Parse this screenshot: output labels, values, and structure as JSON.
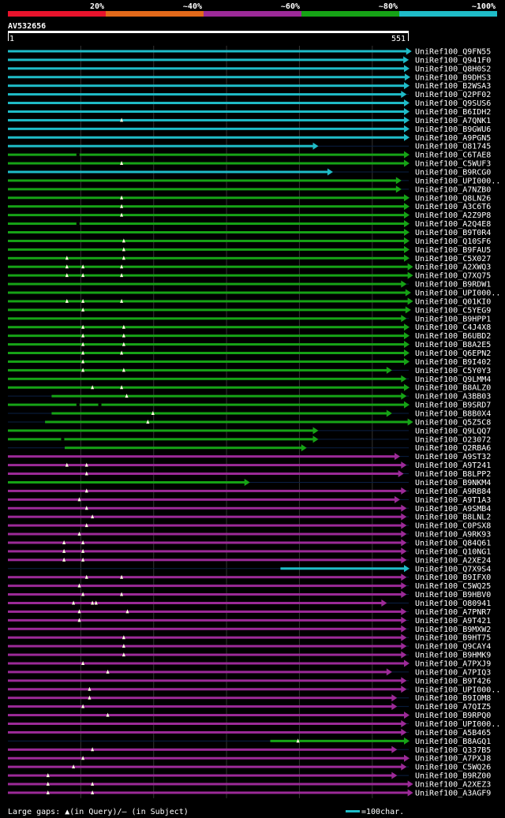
{
  "chart_data": {
    "type": "alignment-overview",
    "query_id": "AV532656",
    "query_length": 551,
    "axis_start_label": "1",
    "axis_end_label": "551",
    "identity_scale": [
      {
        "label": "20%",
        "color": "#e8132c"
      },
      {
        "label": "~40%",
        "color": "#e2691a"
      },
      {
        "label": "~60%",
        "color": "#9c2a98"
      },
      {
        "label": "~80%",
        "color": "#16a316"
      },
      {
        "label": "~100%",
        "color": "#1fbcc8"
      }
    ],
    "legend_gaps": "Large gaps: ▲(in Query)/– (in Subject)",
    "legend_scale": "=100char.",
    "hits": [
      {
        "id": "UniRef100_Q9FN55",
        "start": 1,
        "end": 554,
        "identity": "~100%"
      },
      {
        "id": "UniRef100_Q941F0",
        "start": 1,
        "end": 550,
        "identity": "~100%"
      },
      {
        "id": "UniRef100_Q8H0S2",
        "start": 1,
        "end": 551,
        "identity": "~100%"
      },
      {
        "id": "UniRef100_B9DHS3",
        "start": 1,
        "end": 552,
        "identity": "~100%"
      },
      {
        "id": "UniRef100_B2WSA3",
        "start": 1,
        "end": 551,
        "identity": "~100%"
      },
      {
        "id": "UniRef100_Q2PF02",
        "start": 1,
        "end": 547,
        "identity": "~100%"
      },
      {
        "id": "UniRef100_Q9SUS6",
        "start": 1,
        "end": 551,
        "identity": "~100%"
      },
      {
        "id": "UniRef100_B6IDH2",
        "start": 1,
        "end": 551,
        "identity": "~100%"
      },
      {
        "id": "UniRef100_A7QNK1",
        "start": 1,
        "end": 551,
        "identity": "~100%",
        "qgaps": [
          157
        ]
      },
      {
        "id": "UniRef100_B9GWU6",
        "start": 1,
        "end": 551,
        "identity": "~100%"
      },
      {
        "id": "UniRef100_A9PGN5",
        "start": 1,
        "end": 551,
        "identity": "~100%"
      },
      {
        "id": "UniRef100_O81745",
        "start": 1,
        "end": 426,
        "identity": "~100%"
      },
      {
        "id": "UniRef100_C6TAE8",
        "start": 1,
        "end": 551,
        "identity": "~80%",
        "sgaps": [
          95
        ]
      },
      {
        "id": "UniRef100_C5WUF3",
        "start": 1,
        "end": 551,
        "identity": "~80%",
        "qgaps": [
          157
        ]
      },
      {
        "id": "UniRef100_B9RCG0",
        "start": 1,
        "end": 446,
        "identity": "~100%"
      },
      {
        "id": "UniRef100_UPI000..",
        "start": 1,
        "end": 540,
        "identity": "~80%"
      },
      {
        "id": "UniRef100_A7NZB0",
        "start": 1,
        "end": 540,
        "identity": "~80%"
      },
      {
        "id": "UniRef100_Q8LN26",
        "start": 1,
        "end": 551,
        "identity": "~80%",
        "qgaps": [
          157
        ]
      },
      {
        "id": "UniRef100_A3C6T6",
        "start": 1,
        "end": 551,
        "identity": "~80%",
        "qgaps": [
          157
        ]
      },
      {
        "id": "UniRef100_A2Z9P8",
        "start": 1,
        "end": 551,
        "identity": "~80%",
        "qgaps": [
          157
        ]
      },
      {
        "id": "UniRef100_A2Q4E8",
        "start": 1,
        "end": 551,
        "identity": "~80%",
        "sgaps": [
          95
        ]
      },
      {
        "id": "UniRef100_B9T0R4",
        "start": 1,
        "end": 551,
        "identity": "~80%"
      },
      {
        "id": "UniRef100_Q10SF6",
        "start": 1,
        "end": 551,
        "identity": "~80%",
        "qgaps": [
          160
        ]
      },
      {
        "id": "UniRef100_B9FAU5",
        "start": 1,
        "end": 551,
        "identity": "~80%",
        "qgaps": [
          160
        ]
      },
      {
        "id": "UniRef100_C5X027",
        "start": 1,
        "end": 551,
        "identity": "~80%",
        "qgaps": [
          82,
          160
        ]
      },
      {
        "id": "UniRef100_A2XWQ3",
        "start": 1,
        "end": 556,
        "identity": "~80%",
        "qgaps": [
          82,
          104,
          157
        ]
      },
      {
        "id": "UniRef100_Q7XQ75",
        "start": 1,
        "end": 556,
        "identity": "~80%",
        "qgaps": [
          82,
          104,
          157
        ]
      },
      {
        "id": "UniRef100_B9RDW1",
        "start": 1,
        "end": 547,
        "identity": "~80%"
      },
      {
        "id": "UniRef100_UPI000..",
        "start": 1,
        "end": 553,
        "identity": "~80%"
      },
      {
        "id": "UniRef100_Q01KI0",
        "start": 1,
        "end": 556,
        "identity": "~80%",
        "qgaps": [
          82,
          104,
          157
        ]
      },
      {
        "id": "UniRef100_C5YEG9",
        "start": 1,
        "end": 553,
        "identity": "~80%",
        "qgaps": [
          104
        ]
      },
      {
        "id": "UniRef100_B9HPP1",
        "start": 1,
        "end": 547,
        "identity": "~80%"
      },
      {
        "id": "UniRef100_C4J4X8",
        "start": 1,
        "end": 551,
        "identity": "~80%",
        "qgaps": [
          104,
          160
        ]
      },
      {
        "id": "UniRef100_B6UBD2",
        "start": 1,
        "end": 551,
        "identity": "~80%",
        "qgaps": [
          104,
          160
        ]
      },
      {
        "id": "UniRef100_B8A2E5",
        "start": 1,
        "end": 551,
        "identity": "~80%",
        "qgaps": [
          104,
          160
        ]
      },
      {
        "id": "UniRef100_Q6EPN2",
        "start": 1,
        "end": 551,
        "identity": "~80%",
        "qgaps": [
          104,
          157
        ]
      },
      {
        "id": "UniRef100_B9I402",
        "start": 1,
        "end": 551,
        "identity": "~80%",
        "qgaps": [
          104
        ]
      },
      {
        "id": "UniRef100_C5Y0Y3",
        "start": 1,
        "end": 527,
        "identity": "~80%",
        "qgaps": [
          104,
          160
        ]
      },
      {
        "id": "UniRef100_Q9LMM4",
        "start": 1,
        "end": 547,
        "identity": "~80%"
      },
      {
        "id": "UniRef100_B8ALZ0",
        "start": 1,
        "end": 551,
        "identity": "~80%",
        "qgaps": [
          117,
          157
        ]
      },
      {
        "id": "UniRef100_A3BB03",
        "start": 61,
        "end": 547,
        "identity": "~80%",
        "qgaps": [
          164
        ]
      },
      {
        "id": "UniRef100_B9SRD7",
        "start": 1,
        "end": 551,
        "identity": "~80%",
        "sgaps": [
          95,
          125
        ]
      },
      {
        "id": "UniRef100_B8B0X4",
        "start": 61,
        "end": 527,
        "identity": "~80%",
        "qgaps": [
          200
        ]
      },
      {
        "id": "UniRef100_Q5Z5C8",
        "start": 52,
        "end": 556,
        "identity": "~80%",
        "qgaps": [
          193
        ]
      },
      {
        "id": "UniRef100_Q9LQQ7",
        "start": 1,
        "end": 426,
        "identity": "~80%"
      },
      {
        "id": "UniRef100_O23072",
        "start": 1,
        "end": 426,
        "identity": "~80%",
        "sgaps": [
          74
        ]
      },
      {
        "id": "UniRef100_Q2RBA6",
        "start": 79,
        "end": 410,
        "identity": "~80%"
      },
      {
        "id": "UniRef100_A9ST32",
        "start": 1,
        "end": 538,
        "identity": "~60%"
      },
      {
        "id": "UniRef100_A9T241",
        "start": 1,
        "end": 547,
        "identity": "~60%",
        "qgaps": [
          82,
          109
        ]
      },
      {
        "id": "UniRef100_B8LPP2",
        "start": 1,
        "end": 543,
        "identity": "~60%",
        "qgaps": [
          109
        ]
      },
      {
        "id": "UniRef100_B9NKM4",
        "start": 1,
        "end": 332,
        "identity": "~80%"
      },
      {
        "id": "UniRef100_A9RB84",
        "start": 1,
        "end": 547,
        "identity": "~60%",
        "qgaps": [
          109
        ]
      },
      {
        "id": "UniRef100_A9T1A3",
        "start": 1,
        "end": 538,
        "identity": "~60%",
        "qgaps": [
          99
        ]
      },
      {
        "id": "UniRef100_A9SMB4",
        "start": 1,
        "end": 547,
        "identity": "~60%",
        "qgaps": [
          109
        ]
      },
      {
        "id": "UniRef100_B8LNL2",
        "start": 1,
        "end": 547,
        "identity": "~60%",
        "qgaps": [
          117
        ]
      },
      {
        "id": "UniRef100_C0PSX8",
        "start": 1,
        "end": 547,
        "identity": "~60%",
        "qgaps": [
          109
        ]
      },
      {
        "id": "UniRef100_A9RK93",
        "start": 1,
        "end": 547,
        "identity": "~60%",
        "qgaps": [
          99
        ]
      },
      {
        "id": "UniRef100_Q84Q61",
        "start": 1,
        "end": 547,
        "identity": "~60%",
        "qgaps": [
          78,
          104
        ]
      },
      {
        "id": "UniRef100_Q10NG1",
        "start": 1,
        "end": 547,
        "identity": "~60%",
        "qgaps": [
          78,
          104
        ]
      },
      {
        "id": "UniRef100_A2XE24",
        "start": 1,
        "end": 547,
        "identity": "~60%",
        "qgaps": [
          78,
          104
        ]
      },
      {
        "id": "UniRef100_Q7X9S4",
        "start": 375,
        "end": 551,
        "identity": "~100%"
      },
      {
        "id": "UniRef100_B9IFX0",
        "start": 1,
        "end": 547,
        "identity": "~60%",
        "qgaps": [
          109,
          157
        ]
      },
      {
        "id": "UniRef100_C5WQ25",
        "start": 1,
        "end": 547,
        "identity": "~60%",
        "qgaps": [
          99
        ]
      },
      {
        "id": "UniRef100_B9HBV0",
        "start": 1,
        "end": 547,
        "identity": "~60%",
        "qgaps": [
          104,
          157
        ]
      },
      {
        "id": "UniRef100_O80941",
        "start": 1,
        "end": 520,
        "identity": "~60%",
        "qgaps": [
          91,
          117,
          122
        ]
      },
      {
        "id": "UniRef100_A7PNR7",
        "start": 1,
        "end": 547,
        "identity": "~60%",
        "qgaps": [
          99,
          165
        ]
      },
      {
        "id": "UniRef100_A9T421",
        "start": 1,
        "end": 547,
        "identity": "~60%",
        "qgaps": [
          99
        ]
      },
      {
        "id": "UniRef100_B9MXW2",
        "start": 1,
        "end": 547,
        "identity": "~60%"
      },
      {
        "id": "UniRef100_B9HT75",
        "start": 1,
        "end": 547,
        "identity": "~60%",
        "qgaps": [
          160
        ]
      },
      {
        "id": "UniRef100_Q9CAY4",
        "start": 1,
        "end": 547,
        "identity": "~60%",
        "qgaps": [
          160
        ]
      },
      {
        "id": "UniRef100_B9HMK9",
        "start": 1,
        "end": 547,
        "identity": "~60%",
        "qgaps": [
          160
        ]
      },
      {
        "id": "UniRef100_A7PXJ9",
        "start": 1,
        "end": 551,
        "identity": "~60%",
        "qgaps": [
          104
        ]
      },
      {
        "id": "UniRef100_A7PIQ3",
        "start": 1,
        "end": 527,
        "identity": "~60%",
        "qgaps": [
          138
        ]
      },
      {
        "id": "UniRef100_B9T426",
        "start": 1,
        "end": 547,
        "identity": "~60%"
      },
      {
        "id": "UniRef100_UPI000..",
        "start": 1,
        "end": 547,
        "identity": "~60%",
        "qgaps": [
          113
        ]
      },
      {
        "id": "UniRef100_B9IOM8",
        "start": 1,
        "end": 534,
        "identity": "~60%",
        "qgaps": [
          113
        ]
      },
      {
        "id": "UniRef100_A7QIZ5",
        "start": 1,
        "end": 534,
        "identity": "~60%",
        "qgaps": [
          104
        ]
      },
      {
        "id": "UniRef100_B9RPQ0",
        "start": 1,
        "end": 551,
        "identity": "~60%",
        "qgaps": [
          138
        ]
      },
      {
        "id": "UniRef100_UPI000..",
        "start": 1,
        "end": 547,
        "identity": "~60%"
      },
      {
        "id": "UniRef100_A5B465",
        "start": 1,
        "end": 547,
        "identity": "~60%"
      },
      {
        "id": "UniRef100_B8AGQ1",
        "start": 361,
        "end": 551,
        "identity": "~80%",
        "qgaps": [
          399
        ]
      },
      {
        "id": "UniRef100_Q337B5",
        "start": 1,
        "end": 534,
        "identity": "~60%",
        "qgaps": [
          117
        ]
      },
      {
        "id": "UniRef100_A7PXJ8",
        "start": 1,
        "end": 551,
        "identity": "~60%",
        "qgaps": [
          104
        ]
      },
      {
        "id": "UniRef100_C5WQ26",
        "start": 1,
        "end": 547,
        "identity": "~60%",
        "qgaps": [
          91
        ]
      },
      {
        "id": "UniRef100_B9RZ00",
        "start": 1,
        "end": 534,
        "identity": "~60%",
        "qgaps": [
          56
        ]
      },
      {
        "id": "UniRef100_A2XEZ3",
        "start": 1,
        "end": 556,
        "identity": "~60%",
        "qgaps": [
          56,
          117
        ]
      },
      {
        "id": "UniRef100_A3AGF9",
        "start": 1,
        "end": 556,
        "identity": "~60%",
        "qgaps": [
          56,
          117
        ]
      }
    ]
  }
}
